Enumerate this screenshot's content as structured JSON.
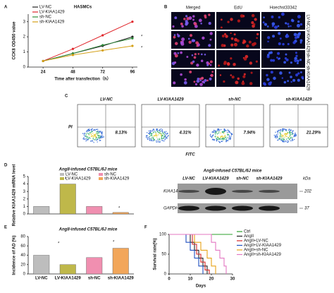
{
  "figure": {
    "panel_labels": [
      "A",
      "B",
      "C",
      "D",
      "E",
      "F"
    ]
  },
  "chart_data": [
    {
      "type": "line",
      "title": "HASMCs",
      "x_label": "Time after transfection（h）",
      "y_label": "CCK8 OD450 value",
      "x": [
        24,
        48,
        72,
        96
      ],
      "xlim": [
        12,
        100
      ],
      "xticks": [
        24,
        48,
        72,
        96
      ],
      "ylim": [
        0,
        3.5
      ],
      "yticks": [
        0,
        1,
        2,
        3
      ],
      "markers": true,
      "series": [
        {
          "name": "LV-NC",
          "color": "#222222",
          "values": [
            0.4,
            0.9,
            1.4,
            2.0
          ]
        },
        {
          "name": "LV-KIAA1429",
          "color": "#e0262b",
          "values": [
            0.4,
            1.2,
            2.1,
            3.0
          ]
        },
        {
          "name": "sh-NC",
          "color": "#2e8b3a",
          "values": [
            0.4,
            0.9,
            1.45,
            1.9
          ]
        },
        {
          "name": "sh-KIAA1429",
          "color": "#d4a017",
          "values": [
            0.4,
            0.8,
            1.1,
            1.4
          ]
        }
      ],
      "annotations": [
        "*",
        "*"
      ]
    },
    {
      "type": "bar",
      "title": "AngII-infused C57BL/6J mice",
      "y_label": "Relative KIAA1429 mRNA level",
      "categories": [
        "LV-NC",
        "LV-KIAA1429",
        "sh-NC",
        "sh-KIAA1429"
      ],
      "values": [
        1.0,
        4.0,
        1.0,
        0.2
      ],
      "colors": [
        "#bdbdbd",
        "#bfb84a",
        "#f08fb0",
        "#f2a65a"
      ],
      "ylim": [
        0,
        5
      ],
      "yticks": [
        0,
        1,
        2,
        3,
        4,
        5
      ],
      "legend": true,
      "annotations": [
        "*",
        "*"
      ]
    },
    {
      "type": "bar",
      "title": "AngII-infused C57BL/6J mice",
      "y_label": "Incidence of AD (%)",
      "categories": [
        "LV-NC",
        "LV-KIAA1429",
        "sh-NC",
        "sh-KIAA1429"
      ],
      "values": [
        40,
        20,
        35,
        55
      ],
      "colors": [
        "#bdbdbd",
        "#bfb84a",
        "#f08fb0",
        "#f2a65a"
      ],
      "ylim": [
        0,
        80
      ],
      "yticks": [
        0,
        20,
        40,
        60,
        80
      ],
      "xlabels": true,
      "annotations": [
        "*",
        "*"
      ]
    },
    {
      "type": "line",
      "x_label": "Days",
      "y_label": "Survival rate(%)",
      "xlim": [
        0,
        30
      ],
      "xticks": [
        0,
        10,
        20,
        30
      ],
      "ylim": [
        0,
        100
      ],
      "yticks": [
        0,
        50,
        100
      ],
      "legend_side": "right",
      "series": [
        {
          "name": "Ctrl",
          "color": "#2ca02c",
          "x": [
            0,
            30
          ],
          "values": [
            100,
            100
          ]
        },
        {
          "name": "AngII",
          "color": "#222222",
          "x": [
            0,
            10,
            10,
            12,
            12,
            14,
            14,
            16,
            16,
            18,
            18
          ],
          "values": [
            100,
            100,
            80,
            80,
            60,
            60,
            40,
            40,
            20,
            20,
            0
          ]
        },
        {
          "name": "AngII+LV-NC",
          "color": "#d62728",
          "x": [
            0,
            11,
            11,
            13,
            13,
            15,
            15,
            17,
            17,
            19,
            19
          ],
          "values": [
            100,
            100,
            75,
            75,
            50,
            50,
            30,
            30,
            10,
            10,
            0
          ]
        },
        {
          "name": "AngII+LV-KIAA1429",
          "color": "#1f4fbf",
          "x": [
            0,
            8,
            8,
            10,
            10,
            12,
            12,
            14,
            14,
            16,
            16
          ],
          "values": [
            100,
            100,
            80,
            80,
            60,
            60,
            40,
            40,
            20,
            20,
            0
          ]
        },
        {
          "name": "AngII+sh-NC",
          "color": "#e8a317",
          "x": [
            0,
            12,
            12,
            15,
            15,
            18,
            18,
            20,
            20,
            22,
            22
          ],
          "values": [
            100,
            100,
            80,
            80,
            60,
            60,
            40,
            40,
            20,
            20,
            0
          ]
        },
        {
          "name": "AngII+sh-KIAA1429",
          "color": "#e377c2",
          "x": [
            0,
            20,
            20,
            22,
            22,
            24,
            24,
            26,
            26,
            27,
            27
          ],
          "values": [
            100,
            100,
            80,
            80,
            60,
            60,
            40,
            40,
            20,
            20,
            0
          ]
        }
      ]
    }
  ],
  "microscopy": {
    "columns": [
      "Merged",
      "EdU",
      "Hoechst33342"
    ],
    "rows": [
      "LV-NC",
      "LV-KIAA1429",
      "sh-NC",
      "sh-KIAA1429"
    ]
  },
  "flow": {
    "y_label": "PI",
    "x_label": "FITC",
    "plots": [
      {
        "title": "LV-NC",
        "percent": "8.13%"
      },
      {
        "title": "LV-KIAA1429",
        "percent": "4.31%"
      },
      {
        "title": "sh-NC",
        "percent": "7.94%"
      },
      {
        "title": "sh-KIAA1429",
        "percent": "21.29%"
      }
    ]
  },
  "blot": {
    "title": "AngII-infused C57BL/6J mice",
    "lanes": [
      "LV-NC",
      "LV-KIAA1429",
      "sh-NC",
      "sh-KIAA1429"
    ],
    "proteins": [
      "KIAA1429",
      "GAPDH"
    ],
    "unit": "kDa",
    "sizes": [
      "202",
      "37"
    ]
  }
}
